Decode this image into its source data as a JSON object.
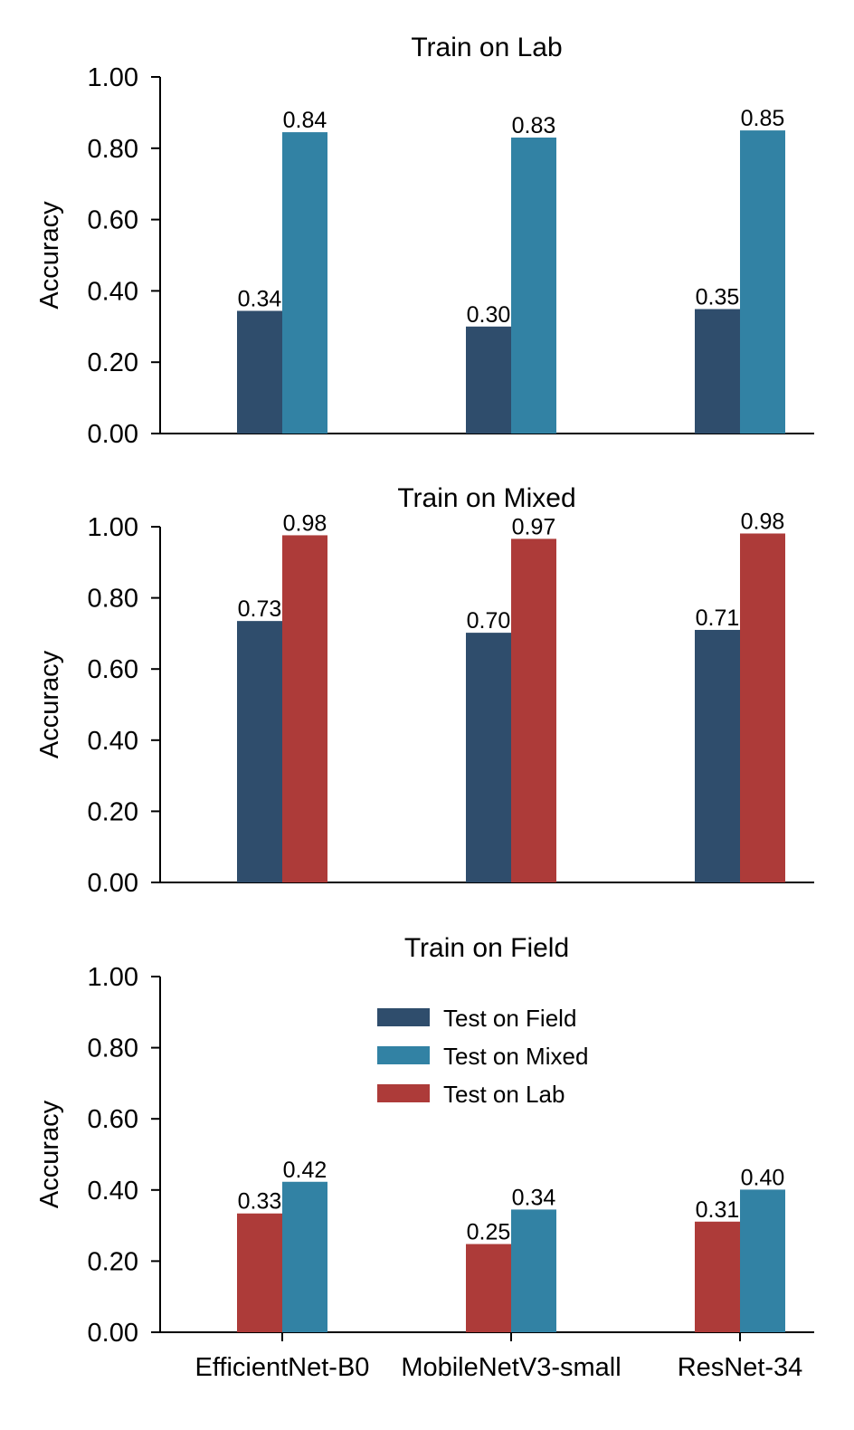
{
  "chart_data": [
    {
      "type": "bar",
      "title": "Train on Lab",
      "ylabel": "Accuracy",
      "xlabel": "",
      "ylim": [
        0,
        1
      ],
      "yticks": [
        "0.00",
        "0.20",
        "0.40",
        "0.60",
        "0.80",
        "1.00"
      ],
      "categories": [
        "EfficientNet-B0",
        "MobileNetV3-small",
        "ResNet-34"
      ],
      "show_category_labels": false,
      "series": [
        {
          "name": "Test on Field",
          "color": "#2f4d6c",
          "values": [
            0.344,
            0.3,
            0.349
          ],
          "labels": [
            "0.34",
            "0.30",
            "0.35"
          ]
        },
        {
          "name": "Test on Mixed",
          "color": "#3282a4",
          "values": [
            0.845,
            0.83,
            0.85
          ],
          "labels": [
            "0.84",
            "0.83",
            "0.85"
          ]
        }
      ]
    },
    {
      "type": "bar",
      "title": "Train on Mixed",
      "ylabel": "Accuracy",
      "xlabel": "",
      "ylim": [
        0,
        1
      ],
      "yticks": [
        "0.00",
        "0.20",
        "0.40",
        "0.60",
        "0.80",
        "1.00"
      ],
      "categories": [
        "EfficientNet-B0",
        "MobileNetV3-small",
        "ResNet-34"
      ],
      "show_category_labels": false,
      "series": [
        {
          "name": "Test on Field",
          "color": "#2f4d6c",
          "values": [
            0.735,
            0.702,
            0.71
          ],
          "labels": [
            "0.73",
            "0.70",
            "0.71"
          ]
        },
        {
          "name": "Test on Lab",
          "color": "#ad3b39",
          "values": [
            0.976,
            0.966,
            0.981
          ],
          "labels": [
            "0.98",
            "0.97",
            "0.98"
          ]
        }
      ]
    },
    {
      "type": "bar",
      "title": "Train on Field",
      "ylabel": "Accuracy",
      "xlabel": "",
      "ylim": [
        0,
        1
      ],
      "yticks": [
        "0.00",
        "0.20",
        "0.40",
        "0.60",
        "0.80",
        "1.00"
      ],
      "categories": [
        "EfficientNet-B0",
        "MobileNetV3-small",
        "ResNet-34"
      ],
      "show_category_labels": true,
      "series": [
        {
          "name": "Test on Lab",
          "color": "#ad3b39",
          "values": [
            0.334,
            0.248,
            0.311
          ],
          "labels": [
            "0.33",
            "0.25",
            "0.31"
          ]
        },
        {
          "name": "Test on Mixed",
          "color": "#3282a4",
          "values": [
            0.423,
            0.345,
            0.401
          ],
          "labels": [
            "0.42",
            "0.34",
            "0.40"
          ]
        }
      ]
    }
  ],
  "legend": {
    "placement": "upper-center",
    "entries": [
      {
        "name": "Test on Field",
        "color": "#2f4d6c"
      },
      {
        "name": "Test on Mixed",
        "color": "#3282a4"
      },
      {
        "name": "Test on Lab",
        "color": "#ad3b39"
      }
    ]
  }
}
